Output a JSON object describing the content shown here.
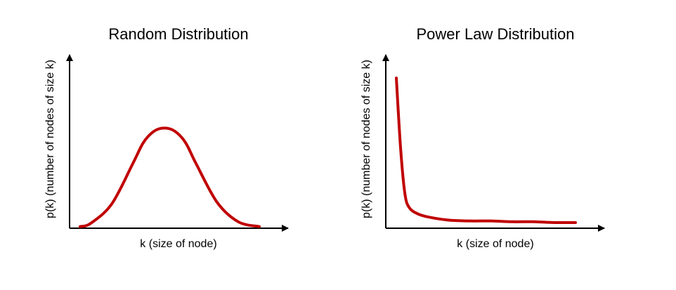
{
  "colors": {
    "curve": "#c00000",
    "axis": "#000000",
    "background": "#ffffff"
  },
  "chart_data": [
    {
      "type": "line",
      "title": "Random Distribution",
      "xlabel": "k (size of node)",
      "ylabel": "p(k) (number of nodes of size k)",
      "xlim": [
        0,
        1
      ],
      "ylim": [
        0,
        1
      ],
      "grid": false,
      "legend": "none",
      "series": [
        {
          "x": [
            0.05,
            0.1,
            0.2,
            0.3,
            0.35,
            0.4,
            0.45,
            0.5,
            0.55,
            0.6,
            0.7,
            0.8,
            0.9
          ],
          "y": [
            0.01,
            0.03,
            0.15,
            0.4,
            0.53,
            0.6,
            0.62,
            0.6,
            0.53,
            0.4,
            0.16,
            0.04,
            0.01
          ]
        }
      ]
    },
    {
      "type": "line",
      "title": "Power Law Distribution",
      "xlabel": "k (size of node)",
      "ylabel": "p(k) (number of nodes of size k)",
      "xlim": [
        0,
        1
      ],
      "ylim": [
        0,
        1
      ],
      "grid": false,
      "legend": "none",
      "series": [
        {
          "x": [
            0.05,
            0.07,
            0.09,
            0.11,
            0.15,
            0.2,
            0.3,
            0.4,
            0.5,
            0.6,
            0.7,
            0.8,
            0.9
          ],
          "y": [
            0.93,
            0.5,
            0.22,
            0.13,
            0.09,
            0.07,
            0.05,
            0.045,
            0.045,
            0.04,
            0.04,
            0.035,
            0.035
          ]
        }
      ]
    }
  ]
}
